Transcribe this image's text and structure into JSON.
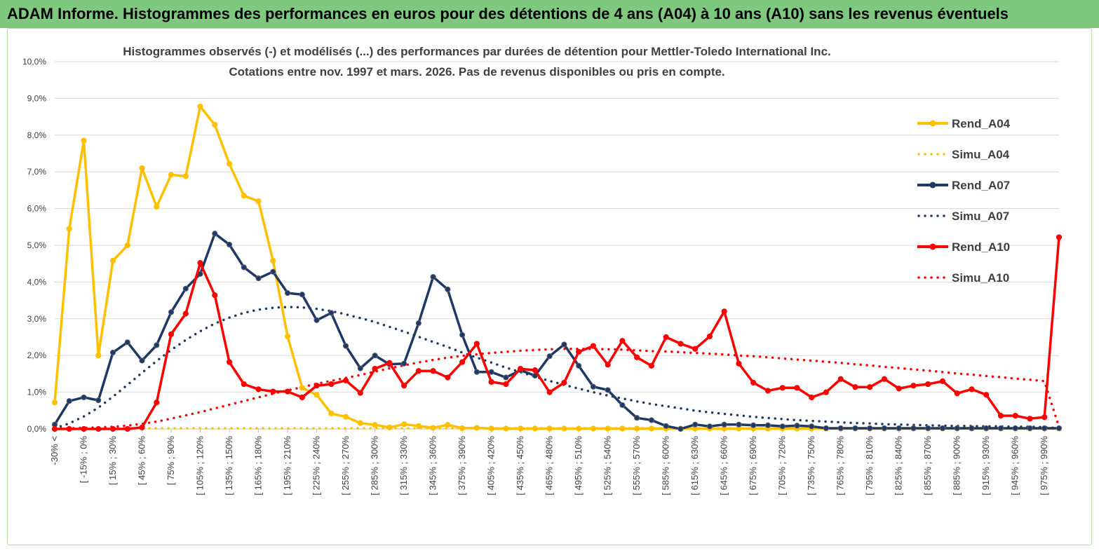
{
  "header": {
    "title": "ADAM Informe. Histogrammes des performances en euros pour des détentions de 4 ans (A04) à 10 ans (A10) sans les revenus éventuels"
  },
  "chart_data": {
    "type": "line",
    "title_lines": [
      "Histogrammes observés (-) et modélisés (...) des performances par durées de détention pour Mettler-Toledo International Inc.",
      "Cotations entre nov. 1997 et mars. 2026. Pas de revenus disponibles ou pris en compte."
    ],
    "xlabel": "",
    "ylabel": "",
    "ylim": [
      0,
      10
    ],
    "yticks": [
      "0,0%",
      "1,0%",
      "2,0%",
      "3,0%",
      "4,0%",
      "5,0%",
      "6,0%",
      "7,0%",
      "8,0%",
      "9,0%",
      "10,0%"
    ],
    "grid": true,
    "legend_position": "right",
    "category_count": 70,
    "tick_labels": [
      "-30% <",
      "[ -15% ; 0%",
      "[ 15% ; 30%",
      "[ 45% ; 60%",
      "[ 75% ; 90%",
      "[ 105% ; 120%",
      "[ 135% ; 150%",
      "[ 165% ; 180%",
      "[ 195% ; 210%",
      "[ 225% ; 240%",
      "[ 255% ; 270%",
      "[ 285% ; 300%",
      "[ 315% ; 330%",
      "[ 345% ; 360%",
      "[ 375% ; 390%",
      "[ 405% ; 420%",
      "[ 435% ; 450%",
      "[ 465% ; 480%",
      "[ 495% ; 510%",
      "[ 525% ; 540%",
      "[ 555% ; 570%",
      "[ 585% ; 600%",
      "[ 615% ; 630%",
      "[ 645% ; 660%",
      "[ 675% ; 690%",
      "[ 705% ; 720%",
      "[ 735% ; 750%",
      "[ 765% ; 780%",
      "[ 795% ; 810%",
      "[ 825% ; 840%",
      "[ 855% ; 870%",
      "[ 885% ; 900%",
      "[ 915% ; 930%",
      "[ 945% ; 960%",
      "[ 975% ; 990%"
    ],
    "series": [
      {
        "name": "Rend_A04",
        "style": "solid",
        "markers": true,
        "color": "#ffc000",
        "values": [
          0.72,
          5.45,
          7.85,
          2.0,
          4.58,
          5.0,
          7.1,
          6.05,
          6.92,
          6.88,
          8.78,
          8.28,
          7.22,
          6.35,
          6.2,
          4.58,
          2.52,
          1.12,
          0.93,
          0.42,
          0.33,
          0.16,
          0.11,
          0.04,
          0.13,
          0.08,
          0.03,
          0.11,
          0.02,
          0.03,
          0.01,
          0.01,
          0.01,
          0.01,
          0.01,
          0.01,
          0.01,
          0.01,
          0.01,
          0.01,
          0.01,
          0.01,
          0.01,
          0.01,
          0.01,
          0.01,
          0.01,
          0.01,
          0.01,
          0.01,
          0.01,
          0.01,
          0.01,
          0.01,
          0.01,
          0.01,
          0.01,
          0.01,
          0.01,
          0.01,
          0.01,
          0.01,
          0.01,
          0.01,
          0.01,
          0.01,
          0.01,
          0.01,
          0.01,
          0.01
        ]
      },
      {
        "name": "Simu_A04",
        "style": "dotted",
        "markers": false,
        "color": "#ffc000",
        "values": [
          0.02,
          0.02,
          0.02,
          0.02,
          0.02,
          0.02,
          0.02,
          0.02,
          0.02,
          0.02,
          0.02,
          0.02,
          0.02,
          0.02,
          0.02,
          0.02,
          0.02,
          0.02,
          0.02,
          0.02,
          0.02,
          0.02,
          0.02,
          0.02,
          0.02,
          0.02,
          0.02,
          0.02,
          0.02,
          0.02,
          0.02,
          0.02,
          0.02,
          0.02,
          0.02,
          0.02,
          0.02,
          0.02,
          0.02,
          0.02,
          0.02,
          0.02,
          0.02,
          0.02,
          0.02,
          0.02,
          0.02,
          0.02,
          0.02,
          0.02,
          0.02,
          0.02,
          0.02,
          0.02,
          0.02,
          0.02,
          0.02,
          0.02,
          0.02,
          0.02,
          0.02,
          0.02,
          0.02,
          0.02,
          0.02,
          0.02,
          0.02,
          0.02,
          0.02,
          0.02
        ]
      },
      {
        "name": "Rend_A07",
        "style": "solid",
        "markers": true,
        "color": "#1f3864",
        "values": [
          0.12,
          0.76,
          0.86,
          0.78,
          2.08,
          2.36,
          1.86,
          2.28,
          3.18,
          3.82,
          4.22,
          5.32,
          5.02,
          4.4,
          4.1,
          4.28,
          3.7,
          3.66,
          2.96,
          3.16,
          2.26,
          1.65,
          2.0,
          1.76,
          1.78,
          2.88,
          4.14,
          3.8,
          2.56,
          1.55,
          1.55,
          1.4,
          1.6,
          1.45,
          1.98,
          2.3,
          1.72,
          1.15,
          1.06,
          0.65,
          0.3,
          0.24,
          0.08,
          0.0,
          0.12,
          0.07,
          0.12,
          0.12,
          0.1,
          0.1,
          0.07,
          0.09,
          0.07,
          0.02,
          0.02,
          0.02,
          0.02,
          0.02,
          0.02,
          0.02,
          0.02,
          0.02,
          0.02,
          0.02,
          0.02,
          0.02,
          0.02,
          0.02,
          0.02,
          0.02
        ]
      },
      {
        "name": "Simu_A07",
        "style": "dotted",
        "markers": false,
        "color": "#1f3864",
        "values": [
          0.02,
          0.15,
          0.34,
          0.58,
          0.88,
          1.2,
          1.53,
          1.85,
          2.15,
          2.42,
          2.66,
          2.87,
          3.03,
          3.16,
          3.25,
          3.3,
          3.32,
          3.31,
          3.27,
          3.21,
          3.12,
          3.02,
          2.91,
          2.78,
          2.65,
          2.51,
          2.37,
          2.23,
          2.08,
          1.94,
          1.81,
          1.67,
          1.55,
          1.42,
          1.31,
          1.2,
          1.1,
          1.0,
          0.91,
          0.83,
          0.75,
          0.68,
          0.62,
          0.56,
          0.5,
          0.45,
          0.41,
          0.37,
          0.33,
          0.3,
          0.27,
          0.24,
          0.22,
          0.2,
          0.18,
          0.16,
          0.15,
          0.13,
          0.12,
          0.11,
          0.1,
          0.09,
          0.08,
          0.08,
          0.07,
          0.07,
          0.06,
          0.06,
          0.05,
          0.02
        ]
      },
      {
        "name": "Rend_A10",
        "style": "solid",
        "markers": true,
        "color": "#ff0000",
        "values": [
          0.0,
          0.0,
          0.0,
          0.0,
          0.0,
          0.0,
          0.04,
          0.72,
          2.58,
          3.14,
          4.52,
          3.64,
          1.82,
          1.22,
          1.08,
          1.02,
          1.02,
          0.86,
          1.18,
          1.22,
          1.32,
          0.98,
          1.64,
          1.8,
          1.18,
          1.58,
          1.58,
          1.4,
          1.82,
          2.32,
          1.28,
          1.22,
          1.64,
          1.6,
          1.0,
          1.26,
          2.1,
          2.26,
          1.75,
          2.4,
          1.95,
          1.72,
          2.5,
          2.32,
          2.18,
          2.52,
          3.2,
          1.78,
          1.26,
          1.04,
          1.12,
          1.12,
          0.86,
          1.0,
          1.36,
          1.14,
          1.14,
          1.36,
          1.1,
          1.18,
          1.22,
          1.3,
          0.97,
          1.08,
          0.93,
          0.36,
          0.36,
          0.28,
          0.32,
          5.22
        ]
      },
      {
        "name": "Simu_A10",
        "style": "dotted",
        "markers": false,
        "color": "#ff0000",
        "values": [
          0.02,
          0.02,
          0.03,
          0.04,
          0.06,
          0.09,
          0.14,
          0.2,
          0.28,
          0.37,
          0.46,
          0.56,
          0.66,
          0.76,
          0.86,
          0.96,
          1.05,
          1.14,
          1.23,
          1.31,
          1.39,
          1.47,
          1.56,
          1.65,
          1.73,
          1.81,
          1.88,
          1.94,
          1.99,
          2.03,
          2.07,
          2.1,
          2.13,
          2.15,
          2.17,
          2.18,
          2.18,
          2.18,
          2.17,
          2.16,
          2.14,
          2.12,
          2.11,
          2.09,
          2.07,
          2.05,
          2.03,
          2.0,
          1.98,
          1.95,
          1.92,
          1.89,
          1.86,
          1.83,
          1.8,
          1.76,
          1.73,
          1.69,
          1.66,
          1.62,
          1.59,
          1.55,
          1.51,
          1.48,
          1.44,
          1.41,
          1.37,
          1.34,
          1.3,
          0.05
        ]
      }
    ]
  }
}
